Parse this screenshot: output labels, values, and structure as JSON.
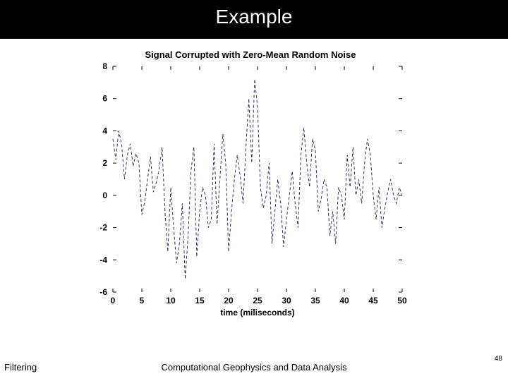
{
  "slide": {
    "title": "Example",
    "footer_left": "Filtering",
    "footer_center": "Computational Geophysics and Data Analysis",
    "page_number": "48"
  },
  "chart": {
    "type": "line",
    "title": "Signal Corrupted with Zero-Mean Random Noise",
    "xlabel": "time (miliseconds)",
    "xlim": [
      0,
      50
    ],
    "ylim": [
      -6,
      8
    ],
    "xtick_step": 5,
    "ytick_step": 2,
    "xticks": [
      0,
      5,
      10,
      15,
      20,
      25,
      30,
      35,
      40,
      45,
      50
    ],
    "yticks": [
      -6,
      -4,
      -2,
      0,
      2,
      4,
      6,
      8
    ],
    "line_color": "#303060",
    "line_dash": "4 3",
    "line_width": 1,
    "tick_color": "#000000",
    "tick_font_size": 12,
    "tick_font_weight": "bold",
    "background_color": "#ffffff",
    "title_fontsize": 13,
    "title_fontweight": "bold",
    "label_fontsize": 12,
    "label_fontweight": "bold",
    "x": [
      0,
      0.5,
      1,
      1.5,
      2,
      2.5,
      3,
      3.5,
      4,
      4.5,
      5,
      5.5,
      6,
      6.5,
      7,
      7.5,
      8,
      8.5,
      9,
      9.5,
      10,
      10.5,
      11,
      11.5,
      12,
      12.5,
      13,
      13.5,
      14,
      14.5,
      15,
      15.5,
      16,
      16.5,
      17,
      17.5,
      18,
      18.5,
      19,
      19.5,
      20,
      20.5,
      21,
      21.5,
      22,
      22.5,
      23,
      23.5,
      24,
      24.5,
      25,
      25.5,
      26,
      26.5,
      27,
      27.5,
      28,
      28.5,
      29,
      29.5,
      30,
      30.5,
      31,
      31.5,
      32,
      32.5,
      33,
      33.5,
      34,
      34.5,
      35,
      35.5,
      36,
      36.5,
      37,
      37.5,
      38,
      38.5,
      39,
      39.5,
      40,
      40.5,
      41,
      41.5,
      42,
      42.5,
      43,
      43.5,
      44,
      44.5,
      45,
      45.5,
      46,
      46.5,
      47,
      47.5,
      48,
      48.5,
      49,
      49.5,
      50
    ],
    "y": [
      3.5,
      2.2,
      4.0,
      3.2,
      1.0,
      2.5,
      3.2,
      1.8,
      2.6,
      2.0,
      -1.2,
      -0.4,
      1.0,
      2.4,
      0.2,
      0.8,
      1.6,
      3.0,
      -1.0,
      -3.5,
      0.5,
      -2.0,
      -4.2,
      -3.0,
      -0.5,
      -5.2,
      -2.5,
      1.5,
      3.0,
      -3.8,
      -1.0,
      0.5,
      0.0,
      -2.0,
      -1.5,
      3.2,
      -1.8,
      1.0,
      3.8,
      2.0,
      -3.5,
      -1.0,
      1.0,
      2.5,
      1.2,
      -0.5,
      3.0,
      6.0,
      2.0,
      7.2,
      5.5,
      0.5,
      -0.8,
      0.0,
      2.0,
      -3.0,
      -1.0,
      1.0,
      -0.5,
      -3.2,
      -1.5,
      0.0,
      1.5,
      -0.5,
      -2.0,
      2.5,
      4.2,
      2.0,
      0.5,
      3.5,
      2.8,
      -1.0,
      -0.2,
      1.0,
      0.5,
      -2.5,
      -1.0,
      -3.0,
      0.5,
      0.0,
      -1.5,
      2.5,
      0.5,
      3.0,
      0.0,
      1.0,
      -0.5,
      2.0,
      3.5,
      2.5,
      0.0,
      -1.5,
      0.5,
      -2.0,
      -0.8,
      0.2,
      1.0,
      0.0,
      -0.5,
      0.5,
      0.0
    ]
  }
}
